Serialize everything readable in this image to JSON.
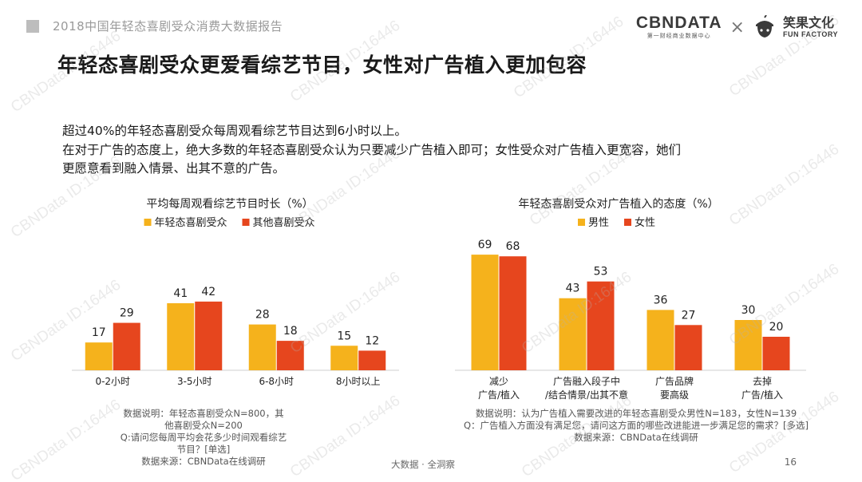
{
  "header": {
    "report_title": "2018中国年轻态喜剧受众消费大数据报告",
    "logo_cbn": "CBNDATA",
    "logo_cbn_sub": "第一财经商业数据中心",
    "logo_times": "×",
    "logo_ff": "笑果文化",
    "logo_ff_sub": "FUN FACTORY"
  },
  "page_heading": "年轻态喜剧受众更爱看综艺节目，女性对广告植入更加包容",
  "summary": [
    "超过40%的年轻态喜剧受众每周观看综艺节目达到6小时以上。",
    "在对于广告的态度上，绝大多数的年轻态喜剧受众认为只要减少广告植入即可；女性受众对广告植入更宽容，她们",
    "更愿意看到融入情景、出其不意的广告。"
  ],
  "chart_data": [
    {
      "type": "bar",
      "title": "平均每周观看综艺节目时长（%）",
      "categories": [
        "0-2小时",
        "3-5小时",
        "6-8小时",
        "8小时以上"
      ],
      "series": [
        {
          "name": "年轻态喜剧受众",
          "values": [
            17,
            41,
            28,
            15
          ],
          "color": "#F5B21C"
        },
        {
          "name": "其他喜剧受众",
          "values": [
            29,
            42,
            18,
            12
          ],
          "color": "#E6461E"
        }
      ],
      "legend_position": "top",
      "grid": false
    },
    {
      "type": "bar",
      "title": "年轻态喜剧受众对广告植入的态度（%）",
      "categories": [
        [
          "减少",
          "广告/植入"
        ],
        [
          "广告融入段子中",
          "/结合情景/出其不意"
        ],
        [
          "广告品牌",
          "要高级"
        ],
        [
          "去掉",
          "广告/植入"
        ]
      ],
      "series": [
        {
          "name": "男性",
          "values": [
            69,
            43,
            36,
            30
          ],
          "color": "#F5B21C"
        },
        {
          "name": "女性",
          "values": [
            68,
            53,
            27,
            20
          ],
          "color": "#E6461E"
        }
      ],
      "legend_position": "top",
      "grid": false
    }
  ],
  "footnotes": {
    "left": [
      "数据说明：年轻态喜剧受众N=800，其他喜剧受众N=200",
      "Q:请问您每周平均会花多少时间观看综艺节目？[单选]",
      "数据来源：CBNData在线调研"
    ],
    "right": [
      "数据说明：认为广告植入需要改进的年轻态喜剧受众男性N=183，女性N=139",
      "Q：广告植入方面没有满足您，请问这方面的哪些改进能进一步满足您的需求？[多选]",
      "数据来源：CBNData在线调研"
    ]
  },
  "footer": {
    "center": "大数据 · 全洞察",
    "page_number": "16"
  },
  "watermark_text": "CBNData ID:16446"
}
